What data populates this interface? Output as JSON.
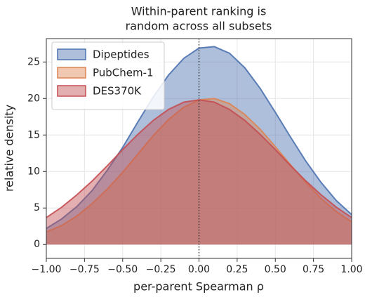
{
  "chart_data": {
    "type": "area",
    "title": [
      "Within-parent ranking is",
      "random across all subsets"
    ],
    "x_label": "per-parent Spearman ρ",
    "y_label": "relative density",
    "x": [
      -1.0,
      -0.9,
      -0.8,
      -0.7,
      -0.6,
      -0.5,
      -0.4,
      -0.3,
      -0.2,
      -0.1,
      0.0,
      0.1,
      0.2,
      0.3,
      0.4,
      0.5,
      0.6,
      0.7,
      0.8,
      0.9,
      1.0
    ],
    "series": [
      {
        "name": "Dipeptides",
        "color": "#4c72b0",
        "values": [
          2.2,
          3.5,
          5.2,
          7.4,
          10.2,
          13.3,
          16.8,
          20.2,
          23.2,
          25.5,
          26.9,
          27.1,
          26.2,
          24.2,
          21.4,
          18.1,
          14.7,
          11.4,
          8.5,
          6.0,
          4.1
        ]
      },
      {
        "name": "PubChem-1",
        "color": "#dd8452",
        "values": [
          1.7,
          2.6,
          3.9,
          5.6,
          7.6,
          9.9,
          12.4,
          14.9,
          17.1,
          18.8,
          19.8,
          20.0,
          19.3,
          17.8,
          15.8,
          13.4,
          10.9,
          8.5,
          6.3,
          4.5,
          3.1
        ]
      },
      {
        "name": "DES370K",
        "color": "#c44e52",
        "values": [
          3.7,
          5.1,
          6.8,
          8.7,
          10.8,
          13.0,
          15.1,
          17.0,
          18.5,
          19.5,
          19.8,
          19.5,
          18.5,
          17.0,
          15.1,
          13.0,
          10.8,
          8.7,
          6.8,
          5.1,
          3.7
        ]
      }
    ],
    "xlim": [
      -1,
      1
    ],
    "ylim": [
      -1.9,
      28.2
    ],
    "xticks": [
      {
        "value": -1,
        "label": "−1.00"
      },
      {
        "value": -0.75,
        "label": "−0.75"
      },
      {
        "value": -0.5,
        "label": "−0.50"
      },
      {
        "value": -0.25,
        "label": "−0.25"
      },
      {
        "value": 0,
        "label": "0.00"
      },
      {
        "value": 0.25,
        "label": "0.25"
      },
      {
        "value": 0.5,
        "label": "0.50"
      },
      {
        "value": 0.75,
        "label": "0.75"
      },
      {
        "value": 1,
        "label": "1.00"
      }
    ],
    "yticks": [
      0,
      5,
      10,
      15,
      20,
      25
    ],
    "vlines": [
      0
    ],
    "grid": true,
    "legend": "upper-left"
  }
}
